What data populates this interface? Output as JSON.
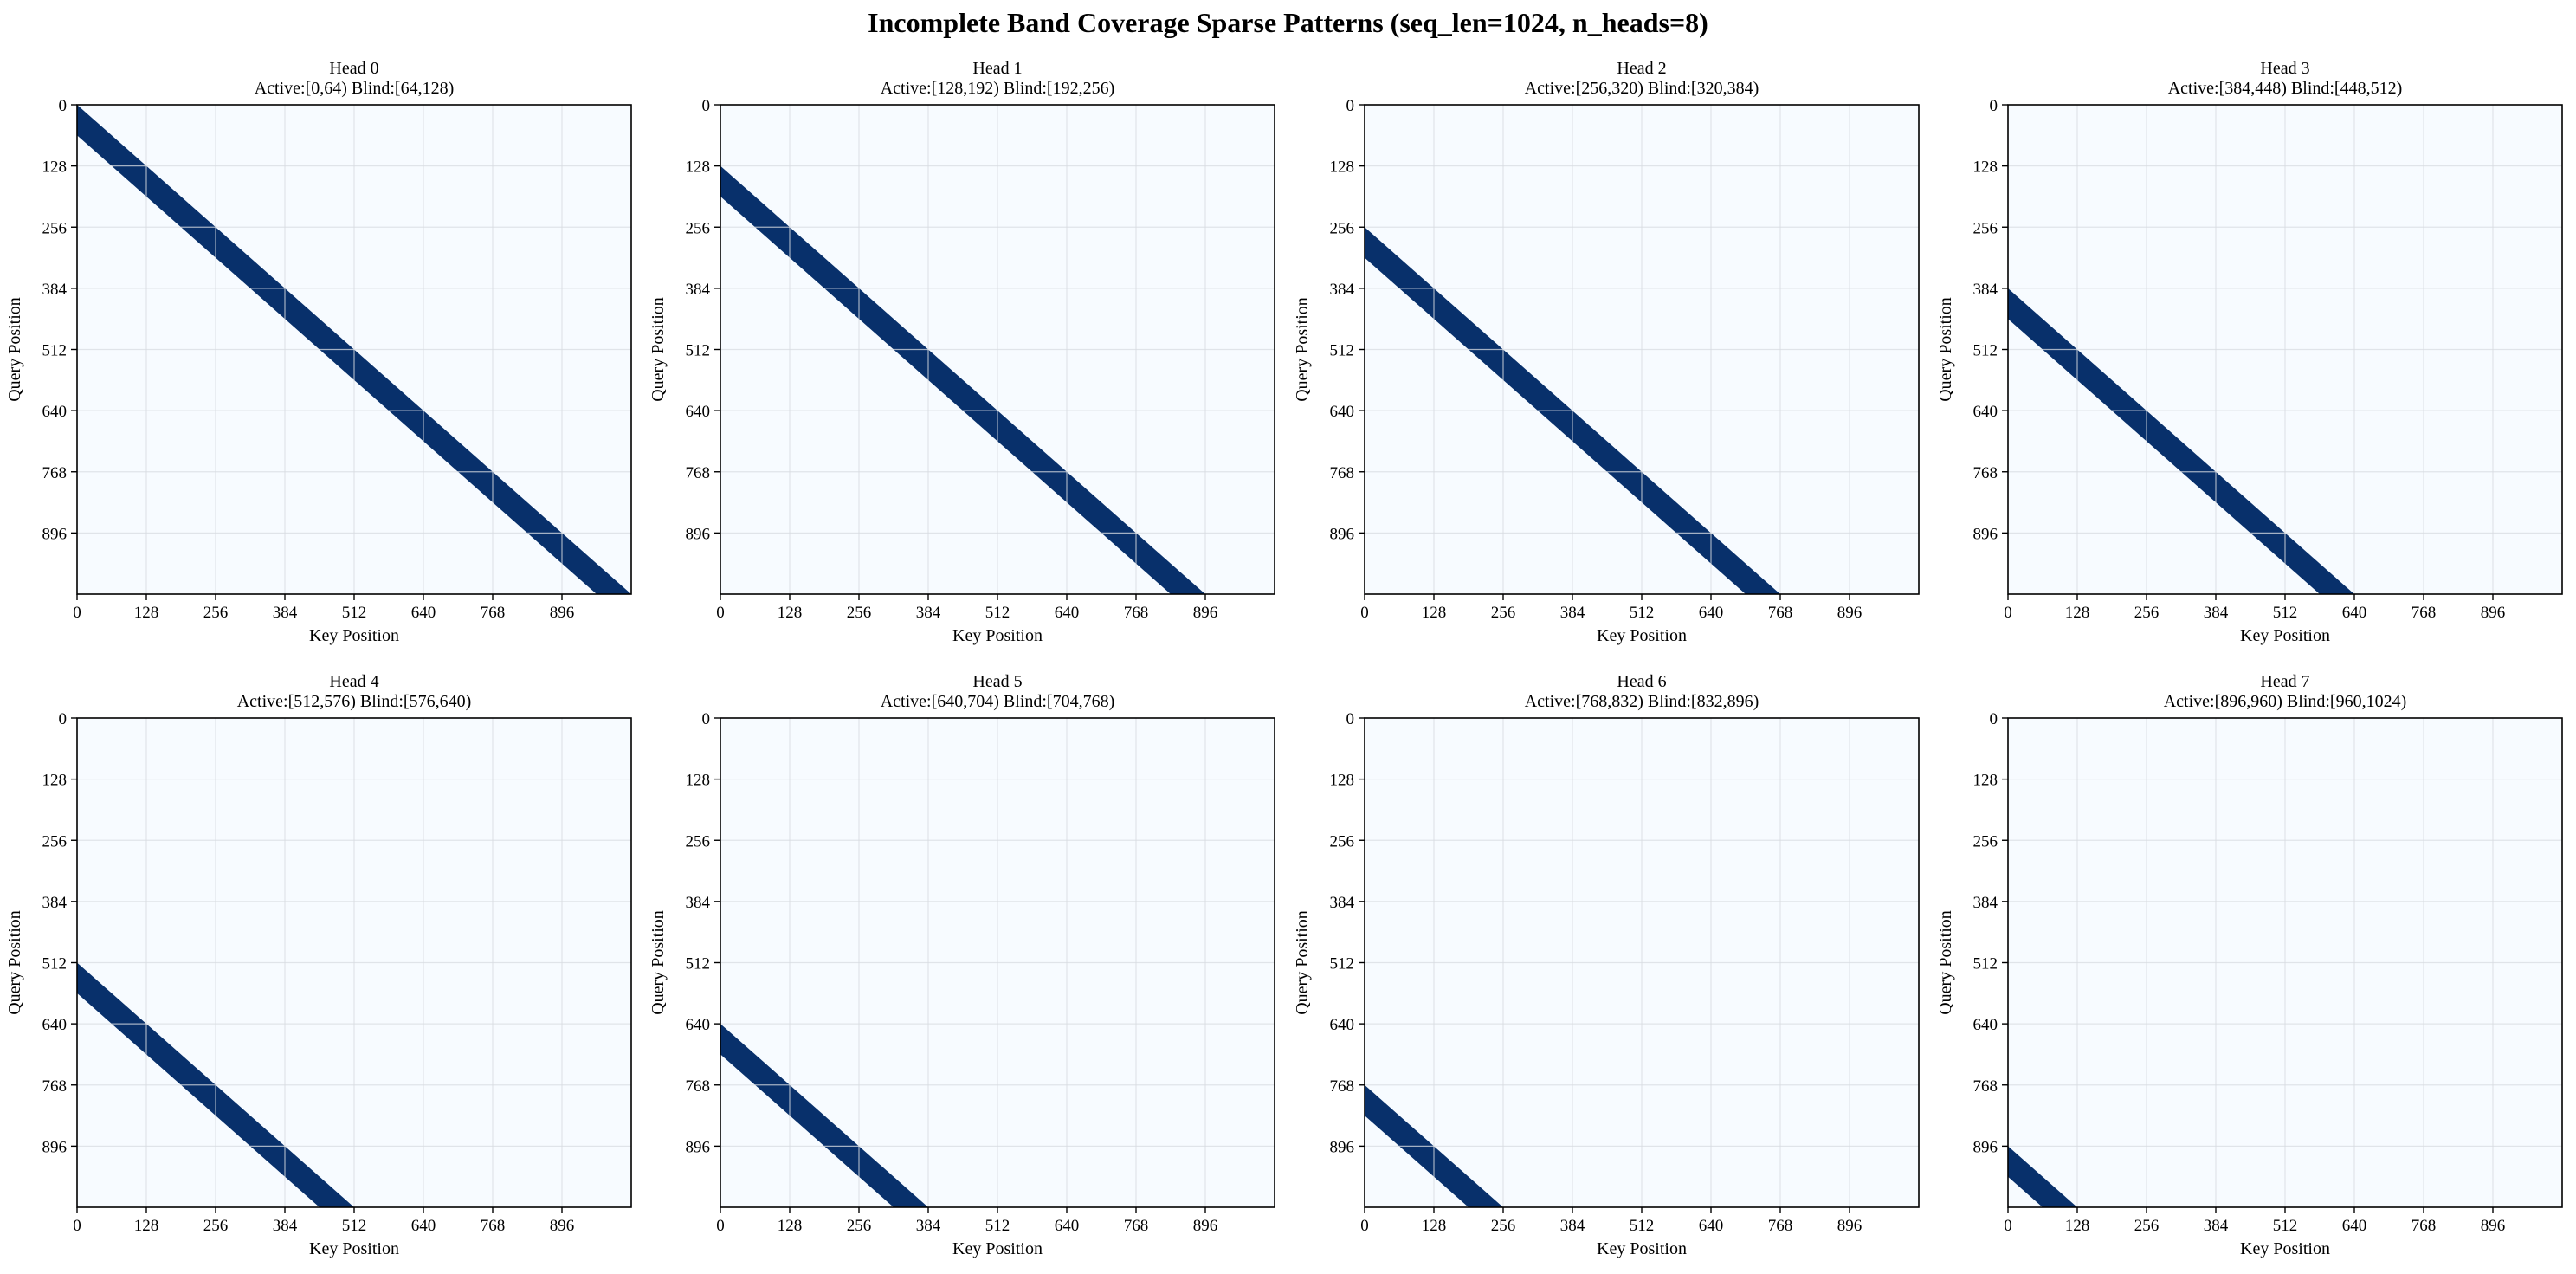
{
  "figure": {
    "title": "Incomplete Band Coverage Sparse Patterns (seq_len=1024, n_heads=8)"
  },
  "chart_data": [
    {
      "type": "heatmap",
      "title": "Head 0",
      "subtitle": "Active:[0,64) Blind:[64,128)",
      "xlabel": "Key Position",
      "ylabel": "Query Position",
      "xlim": [
        0,
        1024
      ],
      "ylim": [
        1024,
        0
      ],
      "xticks": [
        0,
        128,
        256,
        384,
        512,
        640,
        768,
        896
      ],
      "yticks": [
        0,
        128,
        256,
        384,
        512,
        640,
        768,
        896
      ],
      "band_start_query": 0,
      "band_width": 64,
      "grid": true
    },
    {
      "type": "heatmap",
      "title": "Head 1",
      "subtitle": "Active:[128,192) Blind:[192,256)",
      "xlabel": "Key Position",
      "ylabel": "Query Position",
      "xlim": [
        0,
        1024
      ],
      "ylim": [
        1024,
        0
      ],
      "xticks": [
        0,
        128,
        256,
        384,
        512,
        640,
        768,
        896
      ],
      "yticks": [
        0,
        128,
        256,
        384,
        512,
        640,
        768,
        896
      ],
      "band_start_query": 128,
      "band_width": 64,
      "grid": true
    },
    {
      "type": "heatmap",
      "title": "Head 2",
      "subtitle": "Active:[256,320) Blind:[320,384)",
      "xlabel": "Key Position",
      "ylabel": "Query Position",
      "xlim": [
        0,
        1024
      ],
      "ylim": [
        1024,
        0
      ],
      "xticks": [
        0,
        128,
        256,
        384,
        512,
        640,
        768,
        896
      ],
      "yticks": [
        0,
        128,
        256,
        384,
        512,
        640,
        768,
        896
      ],
      "band_start_query": 256,
      "band_width": 64,
      "grid": true
    },
    {
      "type": "heatmap",
      "title": "Head 3",
      "subtitle": "Active:[384,448) Blind:[448,512)",
      "xlabel": "Key Position",
      "ylabel": "Query Position",
      "xlim": [
        0,
        1024
      ],
      "ylim": [
        1024,
        0
      ],
      "xticks": [
        0,
        128,
        256,
        384,
        512,
        640,
        768,
        896
      ],
      "yticks": [
        0,
        128,
        256,
        384,
        512,
        640,
        768,
        896
      ],
      "band_start_query": 384,
      "band_width": 64,
      "grid": true
    },
    {
      "type": "heatmap",
      "title": "Head 4",
      "subtitle": "Active:[512,576) Blind:[576,640)",
      "xlabel": "Key Position",
      "ylabel": "Query Position",
      "xlim": [
        0,
        1024
      ],
      "ylim": [
        1024,
        0
      ],
      "xticks": [
        0,
        128,
        256,
        384,
        512,
        640,
        768,
        896
      ],
      "yticks": [
        0,
        128,
        256,
        384,
        512,
        640,
        768,
        896
      ],
      "band_start_query": 512,
      "band_width": 64,
      "grid": true
    },
    {
      "type": "heatmap",
      "title": "Head 5",
      "subtitle": "Active:[640,704) Blind:[704,768)",
      "xlabel": "Key Position",
      "ylabel": "Query Position",
      "xlim": [
        0,
        1024
      ],
      "ylim": [
        1024,
        0
      ],
      "xticks": [
        0,
        128,
        256,
        384,
        512,
        640,
        768,
        896
      ],
      "yticks": [
        0,
        128,
        256,
        384,
        512,
        640,
        768,
        896
      ],
      "band_start_query": 640,
      "band_width": 64,
      "grid": true
    },
    {
      "type": "heatmap",
      "title": "Head 6",
      "subtitle": "Active:[768,832) Blind:[832,896)",
      "xlabel": "Key Position",
      "ylabel": "Query Position",
      "xlim": [
        0,
        1024
      ],
      "ylim": [
        1024,
        0
      ],
      "xticks": [
        0,
        128,
        256,
        384,
        512,
        640,
        768,
        896
      ],
      "yticks": [
        0,
        128,
        256,
        384,
        512,
        640,
        768,
        896
      ],
      "band_start_query": 768,
      "band_width": 64,
      "grid": true
    },
    {
      "type": "heatmap",
      "title": "Head 7",
      "subtitle": "Active:[896,960) Blind:[960,1024)",
      "xlabel": "Key Position",
      "ylabel": "Query Position",
      "xlim": [
        0,
        1024
      ],
      "ylim": [
        1024,
        0
      ],
      "xticks": [
        0,
        128,
        256,
        384,
        512,
        640,
        768,
        896
      ],
      "yticks": [
        0,
        128,
        256,
        384,
        512,
        640,
        768,
        896
      ],
      "band_start_query": 896,
      "band_width": 64,
      "grid": true
    }
  ],
  "colors": {
    "background": "#f7fbff",
    "band": "#08306b",
    "grid": "#d9dde2",
    "axis": "#000000"
  }
}
